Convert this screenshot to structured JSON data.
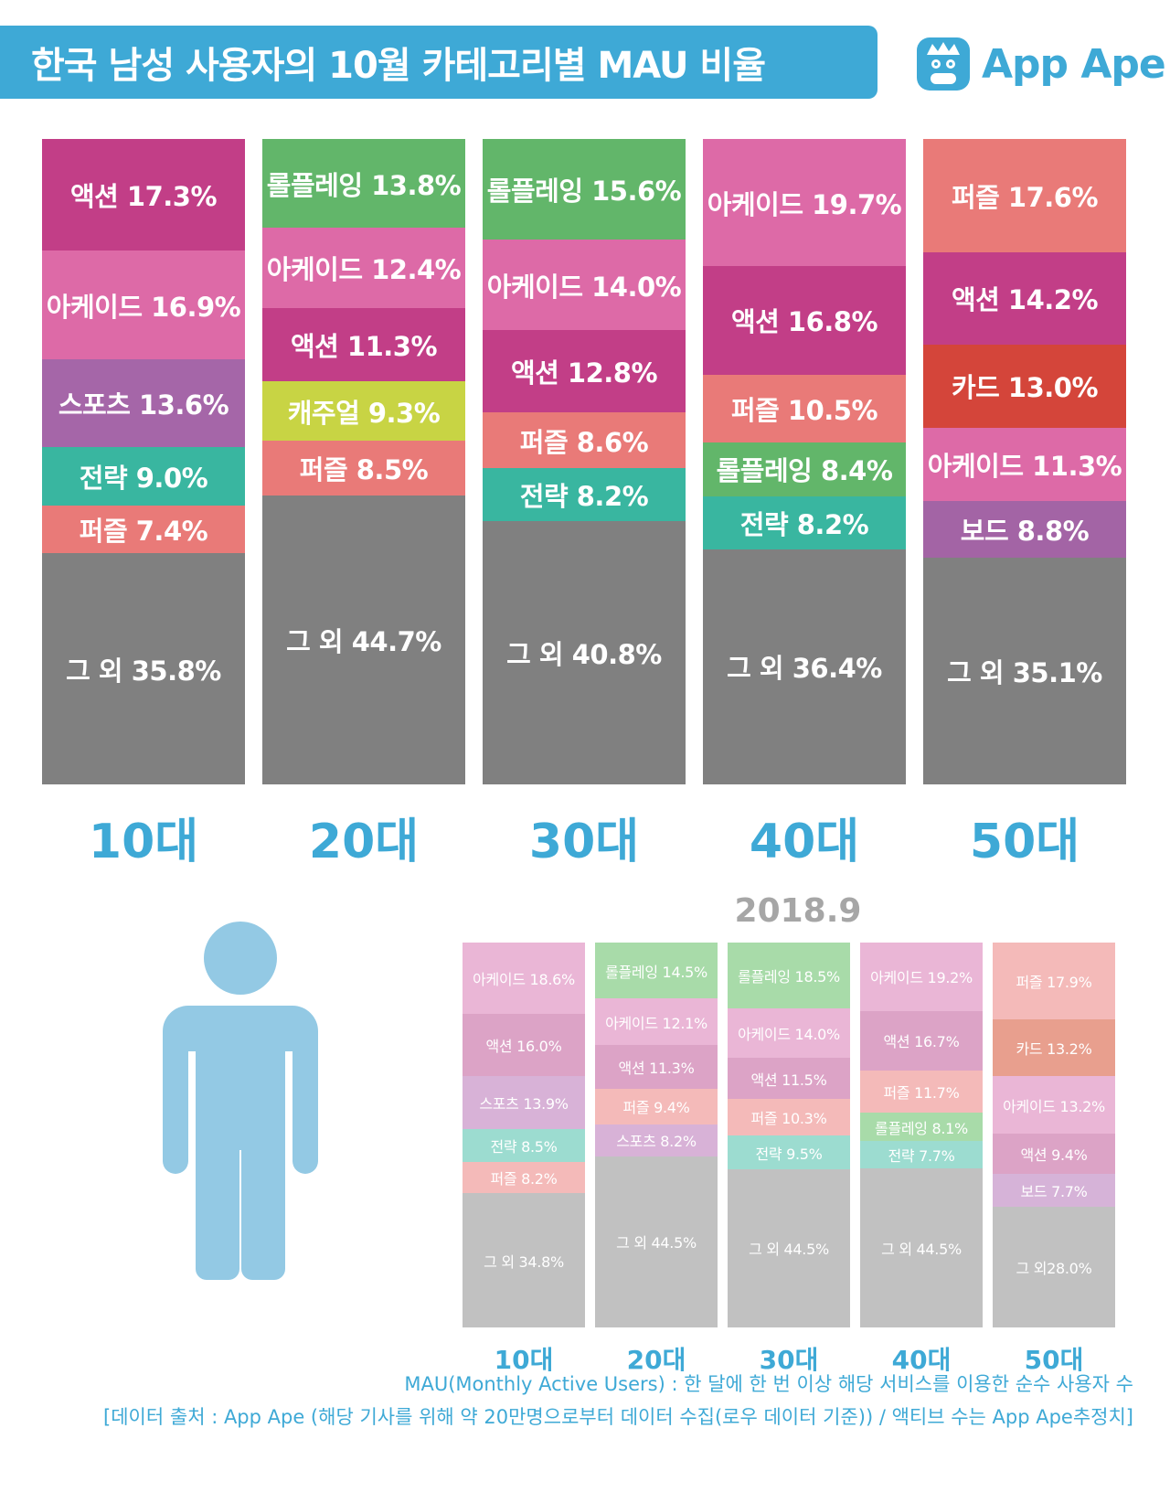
{
  "title": "한국 남성 사용자의 10월 카테고리별 MAU 비율",
  "logo": {
    "name": "App Ape"
  },
  "colors": {
    "action": "#c23e87",
    "arcade": "#dd6aa7",
    "sports": "#a566a8",
    "strategy": "#39b6a0",
    "puzzle": "#e97a78",
    "roleplay": "#62b66a",
    "casual": "#c8d444",
    "card": "#d4453a",
    "board": "#a364a5",
    "other": "#808080",
    "accent": "#3ea9d6",
    "light": {
      "action": "#dca3c6",
      "arcade": "#eab6d6",
      "sports": "#d8b2d7",
      "strategy": "#9cdcd0",
      "puzzle": "#f4bab9",
      "roleplay": "#a8dba9",
      "card": "#e89f8e",
      "board": "#d6b3d8",
      "other": "#c1c1c1"
    }
  },
  "chart_data": [
    {
      "type": "bar",
      "title": "한국 남성 사용자의 10월 카테고리별 MAU 비율",
      "stacked": true,
      "categories": [
        "10대",
        "20대",
        "30대",
        "40대",
        "50대"
      ],
      "columns": [
        {
          "age": "10대",
          "segments": [
            {
              "label": "액션 17.3%",
              "value": 17.3,
              "cat": "action"
            },
            {
              "label": "아케이드 16.9%",
              "value": 16.9,
              "cat": "arcade"
            },
            {
              "label": "스포츠 13.6%",
              "value": 13.6,
              "cat": "sports"
            },
            {
              "label": "전략 9.0%",
              "value": 9.0,
              "cat": "strategy"
            },
            {
              "label": "퍼즐 7.4%",
              "value": 7.4,
              "cat": "puzzle"
            },
            {
              "label": "그 외 35.8%",
              "value": 35.8,
              "cat": "other"
            }
          ]
        },
        {
          "age": "20대",
          "segments": [
            {
              "label": "롤플레잉 13.8%",
              "value": 13.8,
              "cat": "roleplay"
            },
            {
              "label": "아케이드 12.4%",
              "value": 12.4,
              "cat": "arcade"
            },
            {
              "label": "액션 11.3%",
              "value": 11.3,
              "cat": "action"
            },
            {
              "label": "캐주얼 9.3%",
              "value": 9.3,
              "cat": "casual"
            },
            {
              "label": "퍼즐 8.5%",
              "value": 8.5,
              "cat": "puzzle"
            },
            {
              "label": "그 외 44.7%",
              "value": 44.7,
              "cat": "other"
            }
          ]
        },
        {
          "age": "30대",
          "segments": [
            {
              "label": "롤플레잉 15.6%",
              "value": 15.6,
              "cat": "roleplay"
            },
            {
              "label": "아케이드 14.0%",
              "value": 14.0,
              "cat": "arcade"
            },
            {
              "label": "액션 12.8%",
              "value": 12.8,
              "cat": "action"
            },
            {
              "label": "퍼즐 8.6%",
              "value": 8.6,
              "cat": "puzzle"
            },
            {
              "label": "전략 8.2%",
              "value": 8.2,
              "cat": "strategy"
            },
            {
              "label": "그 외 40.8%",
              "value": 40.8,
              "cat": "other"
            }
          ]
        },
        {
          "age": "40대",
          "segments": [
            {
              "label": "아케이드 19.7%",
              "value": 19.7,
              "cat": "arcade"
            },
            {
              "label": "액션 16.8%",
              "value": 16.8,
              "cat": "action"
            },
            {
              "label": "퍼즐 10.5%",
              "value": 10.5,
              "cat": "puzzle"
            },
            {
              "label": "롤플레잉 8.4%",
              "value": 8.4,
              "cat": "roleplay"
            },
            {
              "label": "전략 8.2%",
              "value": 8.2,
              "cat": "strategy"
            },
            {
              "label": "그 외 36.4%",
              "value": 36.4,
              "cat": "other"
            }
          ]
        },
        {
          "age": "50대",
          "segments": [
            {
              "label": "퍼즐 17.6%",
              "value": 17.6,
              "cat": "puzzle"
            },
            {
              "label": "액션 14.2%",
              "value": 14.2,
              "cat": "action"
            },
            {
              "label": "카드 13.0%",
              "value": 13.0,
              "cat": "card"
            },
            {
              "label": "아케이드 11.3%",
              "value": 11.3,
              "cat": "arcade"
            },
            {
              "label": "보드 8.8%",
              "value": 8.8,
              "cat": "board"
            },
            {
              "label": "그 외 35.1%",
              "value": 35.1,
              "cat": "other"
            }
          ]
        }
      ]
    },
    {
      "type": "bar",
      "title": "2018.9",
      "stacked": true,
      "categories": [
        "10대",
        "20대",
        "30대",
        "40대",
        "50대"
      ],
      "columns": [
        {
          "age": "10대",
          "segments": [
            {
              "label": "아케이드 18.6%",
              "value": 18.6,
              "cat": "arcade"
            },
            {
              "label": "액션 16.0%",
              "value": 16.0,
              "cat": "action"
            },
            {
              "label": "스포츠 13.9%",
              "value": 13.9,
              "cat": "sports"
            },
            {
              "label": "전략 8.5%",
              "value": 8.5,
              "cat": "strategy"
            },
            {
              "label": "퍼즐 8.2%",
              "value": 8.2,
              "cat": "puzzle"
            },
            {
              "label": "그 외 34.8%",
              "value": 34.8,
              "cat": "other"
            }
          ]
        },
        {
          "age": "20대",
          "segments": [
            {
              "label": "롤플레잉 14.5%",
              "value": 14.5,
              "cat": "roleplay"
            },
            {
              "label": "아케이드 12.1%",
              "value": 12.1,
              "cat": "arcade"
            },
            {
              "label": "액션 11.3%",
              "value": 11.3,
              "cat": "action"
            },
            {
              "label": "퍼즐 9.4%",
              "value": 9.4,
              "cat": "puzzle"
            },
            {
              "label": "스포츠 8.2%",
              "value": 8.2,
              "cat": "sports"
            },
            {
              "label": "그 외 44.5%",
              "value": 44.5,
              "cat": "other"
            }
          ]
        },
        {
          "age": "30대",
          "segments": [
            {
              "label": "롤플레잉 18.5%",
              "value": 18.5,
              "cat": "roleplay"
            },
            {
              "label": "아케이드 14.0%",
              "value": 14.0,
              "cat": "arcade"
            },
            {
              "label": "액션 11.5%",
              "value": 11.5,
              "cat": "action"
            },
            {
              "label": "퍼즐 10.3%",
              "value": 10.3,
              "cat": "puzzle"
            },
            {
              "label": "전략 9.5%",
              "value": 9.5,
              "cat": "strategy"
            },
            {
              "label": "그 외 44.5%",
              "value": 44.5,
              "cat": "other"
            }
          ]
        },
        {
          "age": "40대",
          "segments": [
            {
              "label": "아케이드 19.2%",
              "value": 19.2,
              "cat": "arcade"
            },
            {
              "label": "액션 16.7%",
              "value": 16.7,
              "cat": "action"
            },
            {
              "label": "퍼즐 11.7%",
              "value": 11.7,
              "cat": "puzzle"
            },
            {
              "label": "롤플레잉 8.1%",
              "value": 8.1,
              "cat": "roleplay"
            },
            {
              "label": "전략 7.7%",
              "value": 7.7,
              "cat": "strategy"
            },
            {
              "label": "그 외 44.5%",
              "value": 44.5,
              "cat": "other"
            }
          ]
        },
        {
          "age": "50대",
          "segments": [
            {
              "label": "퍼즐 17.9%",
              "value": 17.9,
              "cat": "puzzle"
            },
            {
              "label": "카드 13.2%",
              "value": 13.2,
              "cat": "card"
            },
            {
              "label": "아케이드 13.2%",
              "value": 13.2,
              "cat": "arcade"
            },
            {
              "label": "액션 9.4%",
              "value": 9.4,
              "cat": "action"
            },
            {
              "label": "보드 7.7%",
              "value": 7.7,
              "cat": "board"
            },
            {
              "label": "그 외28.0%",
              "value": 28.0,
              "cat": "other"
            }
          ]
        }
      ]
    }
  ],
  "footnotes": [
    "MAU(Monthly Active Users) : 한 달에 한 번 이상 해당 서비스를 이용한 순수 사용자 수",
    "[데이터 출처 : App Ape (해당 기사를 위해 약 20만명으로부터 데이터 수집(로우 데이터 기준)) / 액티브 수는 App Ape추정치]"
  ]
}
